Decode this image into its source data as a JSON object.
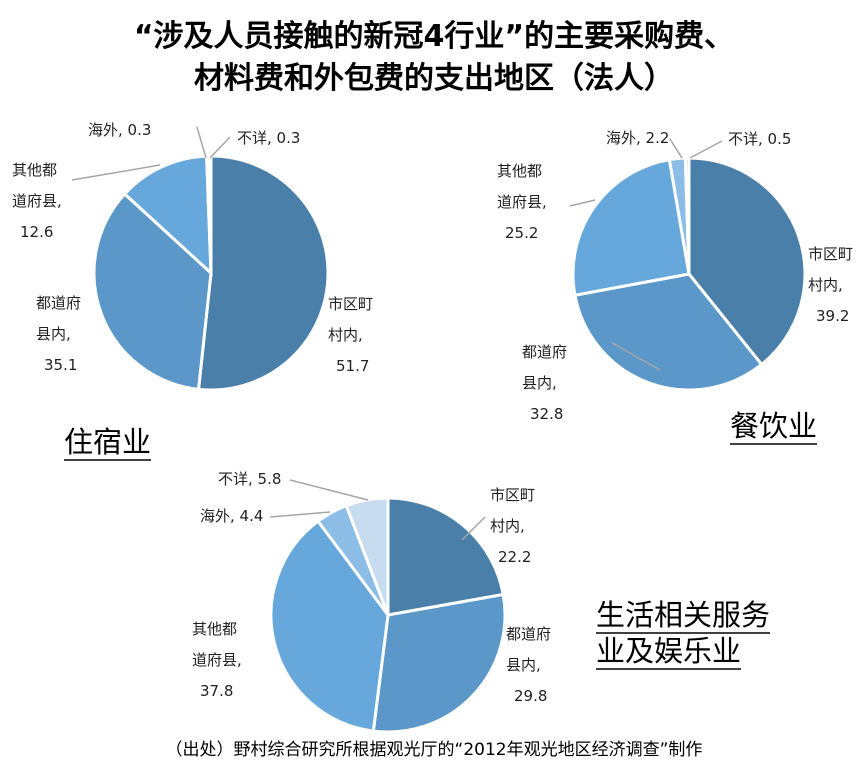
{
  "title_line1": "“涉及人员接触的新冠4行业”的主要采购费、",
  "title_line2": "材料费和外包费的支出地区（法人）",
  "source_note": "（出处）野村综合研究所根据观光厅的“2012年观光地区经济调查”制作",
  "colors": {
    "shinai": "#4a7faa",
    "todofuken": "#5b97c8",
    "sonota": "#66a8dc",
    "kaigai": "#8bbde6",
    "fusho": "#c8dcf0",
    "stroke": "#ffffff",
    "leader": "#a6a6a6"
  },
  "chart_data": [
    {
      "type": "pie",
      "title_lines": [
        "住宿业"
      ],
      "slices": [
        {
          "label_lines": [
            "市区町",
            "村内,"
          ],
          "value": 51.7,
          "value_text": "51.7"
        },
        {
          "label_lines": [
            "都道府",
            "县内,"
          ],
          "value": 35.1,
          "value_text": "35.1"
        },
        {
          "label_lines": [
            "其他都",
            "道府县,"
          ],
          "value": 12.6,
          "value_text": "12.6"
        },
        {
          "label_lines": [
            "海外, 0.3"
          ],
          "value": 0.3,
          "value_text": ""
        },
        {
          "label_lines": [
            "不详, 0.3"
          ],
          "value": 0.3,
          "value_text": ""
        }
      ]
    },
    {
      "type": "pie",
      "title_lines": [
        "餐饮业"
      ],
      "slices": [
        {
          "label_lines": [
            "市区町",
            "村内,"
          ],
          "value": 39.2,
          "value_text": "39.2"
        },
        {
          "label_lines": [
            "都道府",
            "县内,"
          ],
          "value": 32.8,
          "value_text": "32.8"
        },
        {
          "label_lines": [
            "其他都",
            "道府县,"
          ],
          "value": 25.2,
          "value_text": "25.2"
        },
        {
          "label_lines": [
            "海外, 2.2"
          ],
          "value": 2.2,
          "value_text": ""
        },
        {
          "label_lines": [
            "不详, 0.5"
          ],
          "value": 0.5,
          "value_text": ""
        }
      ]
    },
    {
      "type": "pie",
      "title_lines": [
        "生活相关服务",
        "业及娱乐业"
      ],
      "slices": [
        {
          "label_lines": [
            "市区町",
            "村内,"
          ],
          "value": 22.2,
          "value_text": "22.2"
        },
        {
          "label_lines": [
            "都道府",
            "县内,"
          ],
          "value": 29.8,
          "value_text": "29.8"
        },
        {
          "label_lines": [
            "其他都",
            "道府县,"
          ],
          "value": 37.8,
          "value_text": "37.8"
        },
        {
          "label_lines": [
            "海外, 4.4"
          ],
          "value": 4.4,
          "value_text": ""
        },
        {
          "label_lines": [
            "不详, 5.8"
          ],
          "value": 5.8,
          "value_text": ""
        }
      ]
    }
  ]
}
